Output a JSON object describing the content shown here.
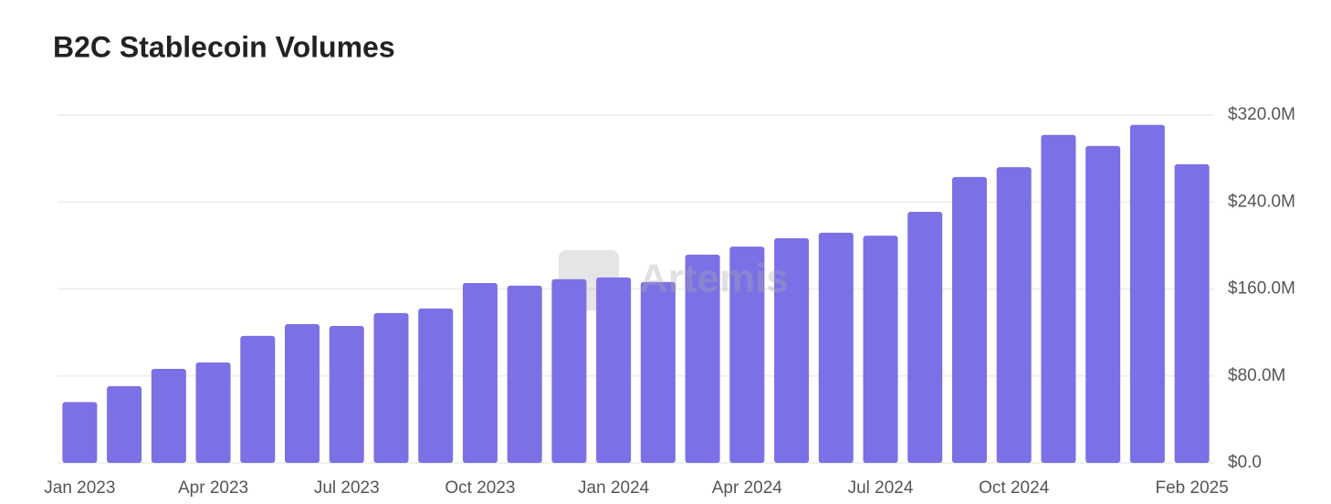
{
  "chart_data": {
    "type": "bar",
    "title": "B2C Stablecoin Volumes",
    "watermark": "Artemis",
    "categories": [
      "Jan 2023",
      null,
      null,
      "Apr 2023",
      null,
      null,
      "Jul 2023",
      null,
      null,
      "Oct 2023",
      null,
      null,
      "Jan 2024",
      null,
      null,
      "Apr 2024",
      null,
      null,
      "Jul 2024",
      null,
      null,
      "Oct 2024",
      null,
      null,
      null,
      "Feb 2025"
    ],
    "values": [
      56,
      70.6,
      86.5,
      92.4,
      116.8,
      127.7,
      126,
      137.8,
      142,
      165.5,
      163,
      169,
      170.6,
      166.4,
      191.6,
      199,
      206.7,
      211.8,
      209,
      231,
      263,
      272,
      301.7,
      291.6,
      311,
      274.8
    ],
    "color": "#7b70e6",
    "ylim": [
      0,
      320
    ],
    "yticks": [
      {
        "value": 0,
        "label": "$0.0"
      },
      {
        "value": 80,
        "label": "$80.0M"
      },
      {
        "value": 160,
        "label": "$160.0M"
      },
      {
        "value": 240,
        "label": "$240.0M"
      },
      {
        "value": 320,
        "label": "$320.0M"
      }
    ],
    "grid": true
  }
}
